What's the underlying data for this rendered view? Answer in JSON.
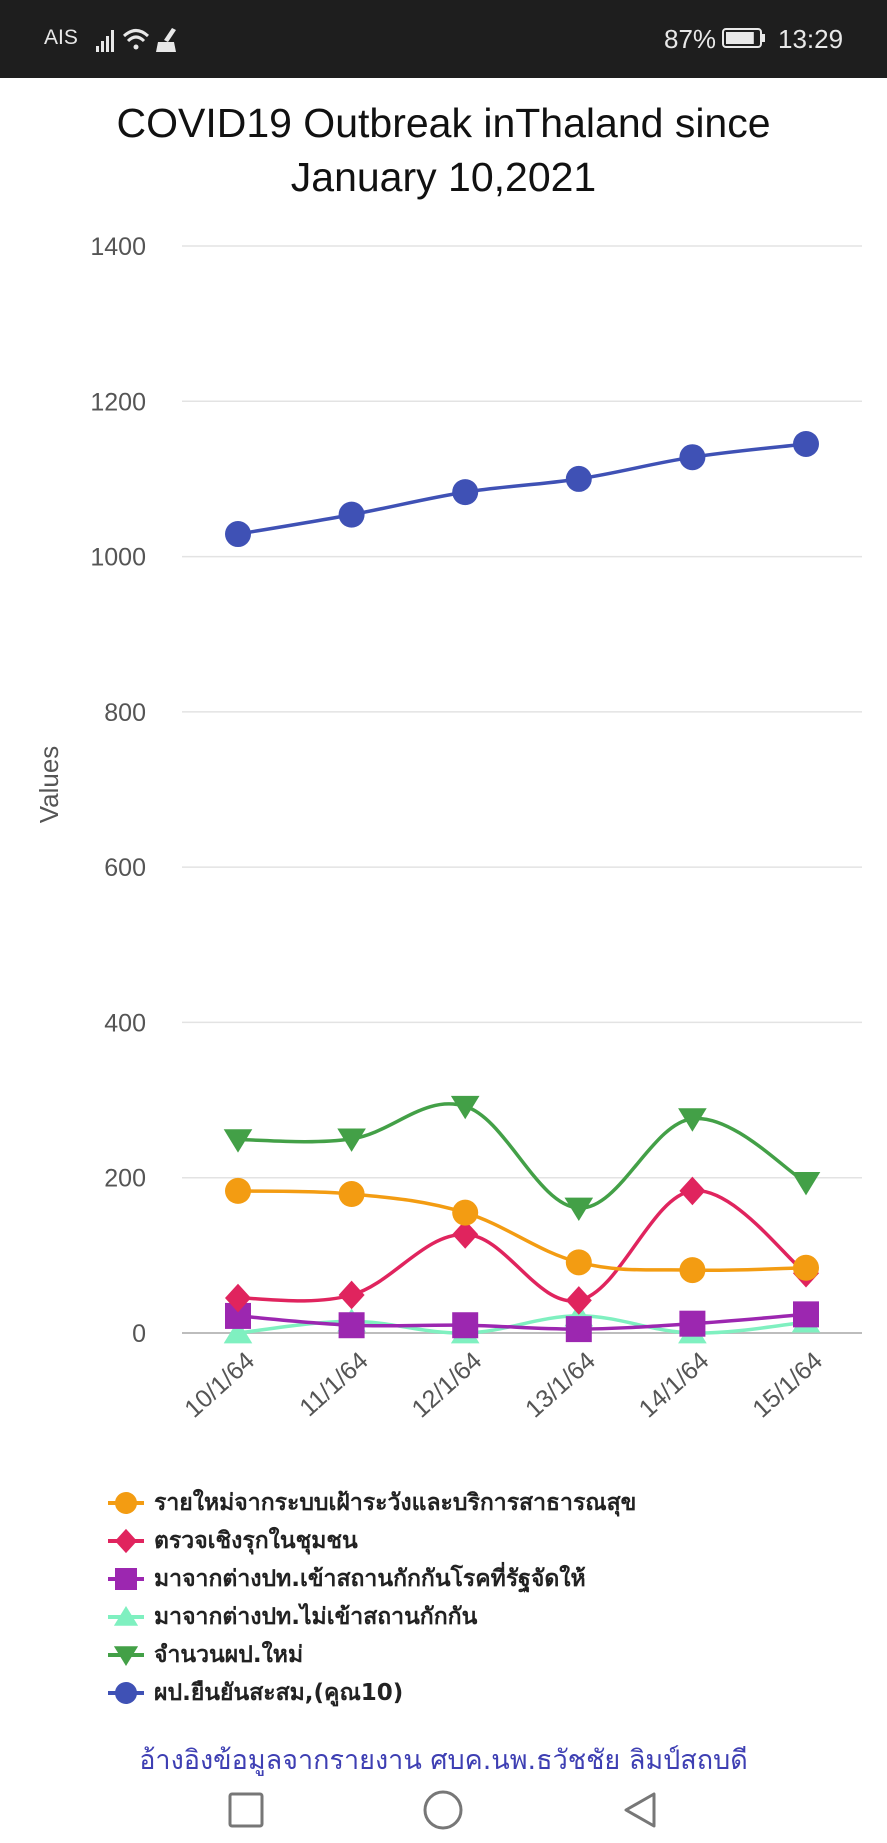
{
  "status_bar": {
    "carrier": "AIS",
    "battery_percent": "87%",
    "battery_level": 0.87,
    "time": "13:29",
    "icons": [
      "signal-icon",
      "wifi-icon",
      "broom-icon",
      "battery-icon"
    ]
  },
  "chart_data": {
    "type": "line",
    "title_lines": [
      "COVID19 Outbreak inThaland since",
      "January 10,2021"
    ],
    "xlabel": "",
    "ylabel": "Values",
    "ylim": [
      0,
      1400
    ],
    "yticks": [
      0,
      200,
      400,
      600,
      800,
      1000,
      1200,
      1400
    ],
    "grid": true,
    "legend_position": "bottom",
    "categories": [
      "10/1/64",
      "11/1/64",
      "12/1/64",
      "13/1/64",
      "14/1/64",
      "15/1/64"
    ],
    "series": [
      {
        "name": "รายใหม่จากระบบเฝ้าระวังและบริการสาธารณสุข",
        "color": "#f39c12",
        "marker": "circle",
        "values": [
          183,
          179,
          155,
          91,
          81,
          84
        ]
      },
      {
        "name": "ตรวจเชิงรุกในชุมชน",
        "color": "#e0245e",
        "marker": "diamond",
        "values": [
          45,
          49,
          127,
          42,
          183,
          77
        ]
      },
      {
        "name": "มาจากต่างปท.เข้าสถานกักกันโรคที่รัฐจัดให้",
        "color": "#9c27b0",
        "marker": "square",
        "values": [
          22,
          10,
          10,
          5,
          12,
          24
        ]
      },
      {
        "name": "มาจากต่างปท.ไม่เข้าสถานกักกัน",
        "color": "#7ff0c0",
        "marker": "triangle-up",
        "values": [
          0,
          15,
          0,
          22,
          0,
          14
        ]
      },
      {
        "name": "จำนวนผป.ใหม่",
        "color": "#43a047",
        "marker": "triangle-down",
        "values": [
          249,
          250,
          292,
          161,
          276,
          194
        ]
      },
      {
        "name": "ผป.ยืนยันสะสม,(คูณ10)",
        "color": "#3f51b5",
        "marker": "circle",
        "values": [
          1029,
          1054,
          1083,
          1100,
          1128,
          1145
        ]
      }
    ]
  },
  "source_note": "อ้างอิงข้อมูลจากรายงาน ศบค.นพ.ธวัชชัย  ลิมป์สถบดี",
  "nav_bar": {
    "buttons": [
      "recents-square-icon",
      "home-circle-icon",
      "back-triangle-icon"
    ]
  }
}
